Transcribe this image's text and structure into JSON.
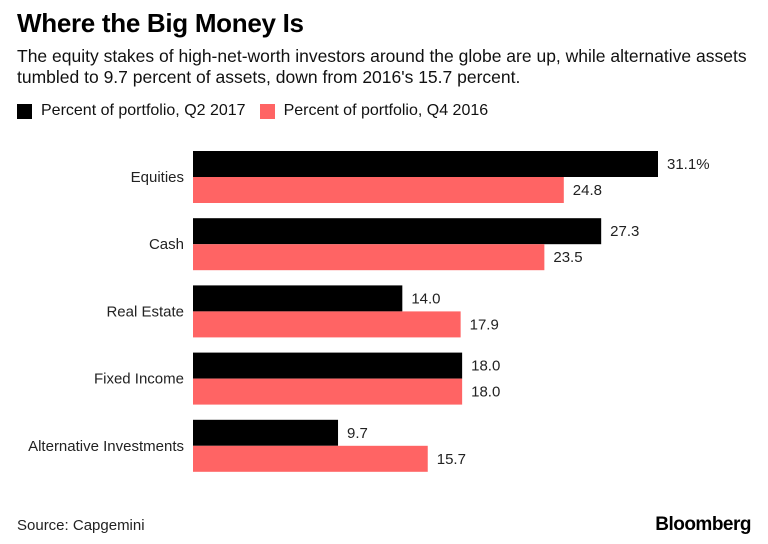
{
  "title": "Where the Big Money Is",
  "subtitle": "The equity stakes of high-net-worth investors around the globe are up, while alternative assets tumbled to 9.7 percent of assets, down from 2016's 15.7 percent.",
  "legend": [
    {
      "label": "Percent of portfolio, Q2 2017",
      "color": "#000000"
    },
    {
      "label": "Percent of portfolio, Q4 2016",
      "color": "#ff6464"
    }
  ],
  "source": "Source: Capgemini",
  "brand": "Bloomberg",
  "chart_data": {
    "type": "bar",
    "orientation": "horizontal",
    "title": "Where the Big Money Is",
    "xlabel": "",
    "ylabel": "",
    "categories": [
      "Equities",
      "Cash",
      "Real Estate",
      "Fixed Income",
      "Alternative Investments"
    ],
    "series": [
      {
        "name": "Percent of portfolio, Q2 2017",
        "color": "#000000",
        "values": [
          31.1,
          27.3,
          14.0,
          18.0,
          9.7
        ],
        "labels": [
          "31.1%",
          "27.3",
          "14.0",
          "18.0",
          "9.7"
        ]
      },
      {
        "name": "Percent of portfolio, Q4 2016",
        "color": "#ff6464",
        "values": [
          24.8,
          23.5,
          17.9,
          18.0,
          15.7
        ],
        "labels": [
          "24.8",
          "23.5",
          "17.9",
          "18.0",
          "15.7"
        ]
      }
    ],
    "xlim": [
      0,
      31.1
    ],
    "grid": false,
    "legend_position": "top-left"
  }
}
